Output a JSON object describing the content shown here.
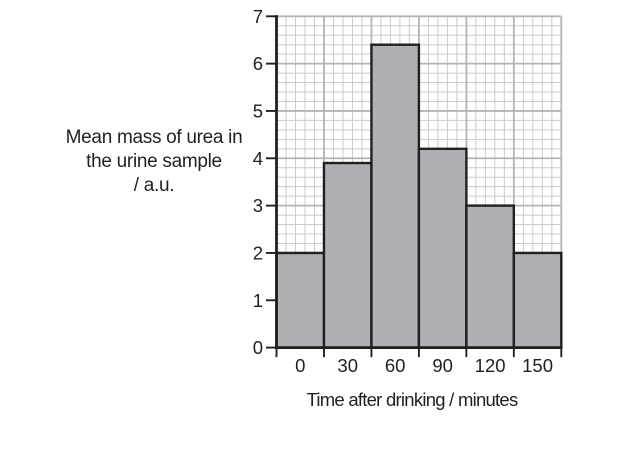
{
  "chart_data": {
    "type": "bar",
    "categories": [
      "0",
      "30",
      "60",
      "90",
      "120",
      "150"
    ],
    "values": [
      2,
      3.9,
      6.4,
      4.2,
      3,
      2
    ],
    "title": "",
    "xlabel": "Time after drinking / minutes",
    "ylabel_lines": [
      "Mean mass of urea in",
      "the urine sample",
      "/ a.u."
    ],
    "ylim": [
      0,
      7
    ],
    "y_tick_step": 1,
    "minor_divisions_per_major": 5,
    "grid": "graph-paper",
    "legend": "none",
    "colors": {
      "bar_fill": "#aeb0b3",
      "bar_outline": "#231f20",
      "axis": "#231f20",
      "grid_minor": "#c9cbcd",
      "grid_major": "#b2b4b7",
      "text": "#231f20",
      "background": "#ffffff"
    }
  }
}
